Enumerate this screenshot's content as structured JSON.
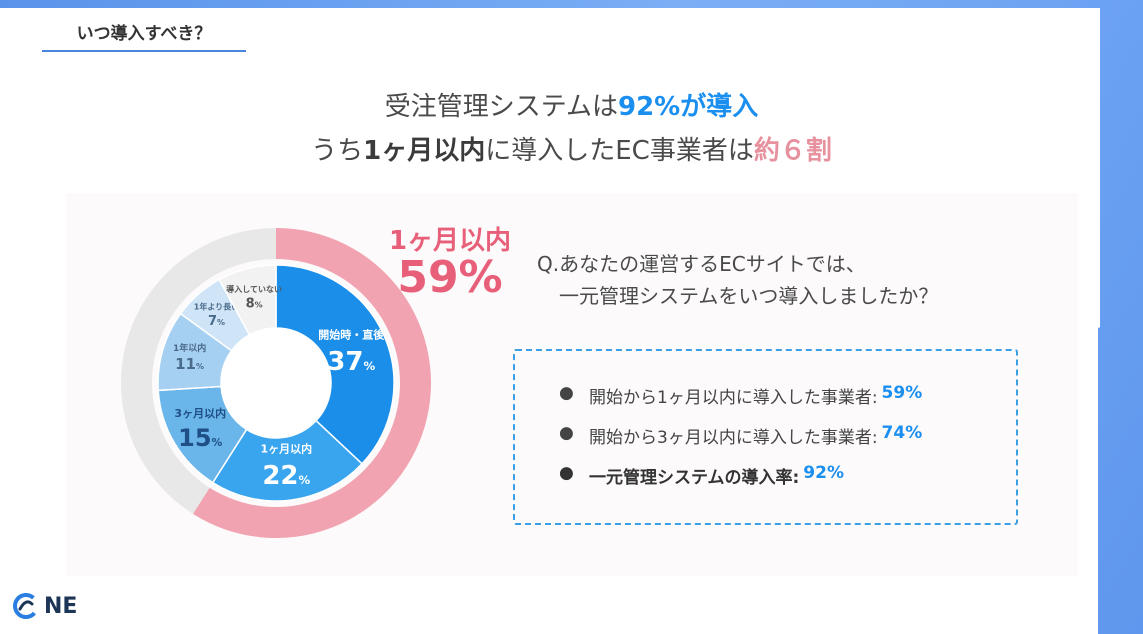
{
  "tag": "いつ導入すべき？",
  "headline": {
    "line1_pre": "受注管理システムは",
    "line1_highlight": "92%が導入",
    "line2_pre": "うち",
    "line2_bold": "1ヶ月以内",
    "line2_mid": "に導入したEC事業者は",
    "line2_highlight": "約６割"
  },
  "callout": {
    "label": "1ヶ月以内",
    "value": "59%"
  },
  "question": {
    "line1": "Q.あなたの運営するECサイトでは、",
    "line2": "一元管理システムをいつ導入しましたか？"
  },
  "summary": [
    {
      "text": "開始から1ヶ月以内に導入した事業者:",
      "value": "59%"
    },
    {
      "text": "開始から3ヶ月以内に導入した事業者:",
      "value": "74%"
    },
    {
      "text": "一元管理システムの導入率:",
      "value": "92%"
    }
  ],
  "logo": {
    "text": "NE"
  },
  "chart_data": {
    "type": "pie",
    "style": "donut",
    "slices": [
      {
        "label": "開始時・直後",
        "value": 37,
        "display": "37",
        "unit": "%",
        "color": "#1a8ee8"
      },
      {
        "label": "1ヶ月以内",
        "value": 22,
        "display": "22",
        "unit": "%",
        "color": "#3aa5ef"
      },
      {
        "label": "3ヶ月以内",
        "value": 15,
        "display": "15",
        "unit": "%",
        "color": "#6ab5ea"
      },
      {
        "label": "1年以内",
        "value": 11,
        "display": "11",
        "unit": "%",
        "color": "#a6d0f1"
      },
      {
        "label": "1年より長い",
        "value": 7,
        "display": "7",
        "unit": "%",
        "color": "#cfe5f7"
      },
      {
        "label": "導入していない",
        "value": 8,
        "display": "8",
        "unit": "%",
        "color": "#f2f2f2"
      }
    ],
    "outer_ring": [
      {
        "label": "1ヶ月以内",
        "value": 59,
        "color": "#f2a3b1"
      },
      {
        "label": "other",
        "value": 41,
        "color": "#e8e8e8"
      }
    ]
  }
}
